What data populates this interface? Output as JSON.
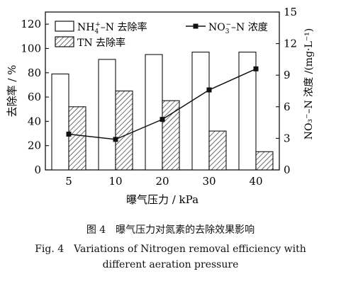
{
  "chart_data": {
    "type": "bar",
    "categories": [
      "5",
      "10",
      "20",
      "30",
      "40"
    ],
    "xlabel": "曝气压力 / kPa",
    "ylabel_left": "去除率 / %",
    "ylabel_right": "NO₃⁻–N 浓度 /(mg·L⁻¹)",
    "ylim_left": [
      0,
      130
    ],
    "yticks_left": [
      "0",
      "20",
      "40",
      "60",
      "80",
      "100",
      "120"
    ],
    "ylim_right": [
      0,
      15
    ],
    "yticks_right": [
      "0",
      "3",
      "6",
      "9",
      "12",
      "15"
    ],
    "grid": false,
    "legend_placement": "top",
    "series": [
      {
        "name": "NH₄⁺–N 去除率",
        "kind": "bar",
        "axis": "left",
        "fill": "white",
        "values": [
          79,
          91,
          95,
          97,
          97
        ]
      },
      {
        "name": "TN 去除率",
        "kind": "bar",
        "axis": "left",
        "fill": "hatched",
        "values": [
          52,
          65,
          57,
          32,
          15
        ]
      },
      {
        "name": "NO₃⁻–N 浓度",
        "kind": "line",
        "axis": "right",
        "marker": "square",
        "values": [
          3.4,
          2.9,
          4.8,
          7.6,
          9.6
        ]
      }
    ]
  },
  "legend": {
    "nh4": {
      "main": "NH",
      "sub": "4",
      "sup": "+",
      "rest": "–N 去除率"
    },
    "no3": {
      "main": "NO",
      "sub": "3",
      "sup": "−",
      "rest": "–N 浓度"
    },
    "tn": "TN 去除率"
  },
  "caption": {
    "cn": "图 4　曝气压力对氮素的去除效果影响",
    "en_line1": "Fig. 4　Variations of Nitrogen removal efficiency with",
    "en_line2": "different aeration pressure"
  },
  "colors": {
    "axis": "#111111",
    "bar_outline": "#111111",
    "line": "#111111"
  }
}
